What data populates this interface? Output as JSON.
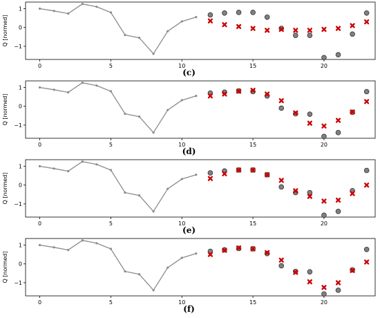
{
  "chart_data": [
    {
      "type": "scatter",
      "panel_label": "(c)",
      "ylabel": "Q [normed]",
      "xlim": [
        -1,
        23.6
      ],
      "ylim": [
        -1.7,
        1.35
      ],
      "x_ticks": [
        0,
        5,
        10,
        15,
        20
      ],
      "y_ticks": [
        1,
        0,
        -1
      ],
      "history": {
        "x": [
          0,
          1,
          2,
          3,
          4,
          5,
          6,
          7,
          8,
          9,
          10,
          11
        ],
        "y": [
          1.0,
          0.88,
          0.74,
          1.25,
          1.1,
          0.8,
          -0.4,
          -0.55,
          -1.4,
          -0.2,
          0.32,
          0.55
        ]
      },
      "observed": {
        "x": [
          12,
          13,
          14,
          15,
          16,
          17,
          18,
          19,
          20,
          21,
          22,
          23
        ],
        "y": [
          0.67,
          0.77,
          0.8,
          0.8,
          0.55,
          -0.05,
          -0.42,
          -0.42,
          -1.6,
          -1.45,
          -0.35,
          0.77
        ]
      },
      "predicted": {
        "x": [
          12,
          13,
          14,
          15,
          16,
          17,
          18,
          19,
          20,
          21,
          22,
          23
        ],
        "y": [
          0.35,
          0.15,
          0.05,
          -0.05,
          -0.15,
          -0.1,
          -0.15,
          -0.15,
          -0.1,
          -0.05,
          0.1,
          0.3
        ]
      }
    },
    {
      "type": "scatter",
      "panel_label": "(d)",
      "ylabel": "Q [normed]",
      "xlim": [
        -1,
        23.6
      ],
      "ylim": [
        -1.7,
        1.35
      ],
      "x_ticks": [
        0,
        5,
        10,
        15,
        20
      ],
      "y_ticks": [
        1,
        0,
        -1
      ],
      "history": {
        "x": [
          0,
          1,
          2,
          3,
          4,
          5,
          6,
          7,
          8,
          9,
          10,
          11
        ],
        "y": [
          1.0,
          0.88,
          0.74,
          1.25,
          1.1,
          0.8,
          -0.4,
          -0.55,
          -1.4,
          -0.2,
          0.32,
          0.55
        ]
      },
      "observed": {
        "x": [
          12,
          13,
          14,
          15,
          16,
          17,
          18,
          19,
          20,
          21,
          22,
          23
        ],
        "y": [
          0.7,
          0.75,
          0.82,
          0.78,
          0.55,
          -0.1,
          -0.4,
          -0.42,
          -1.6,
          -1.4,
          -0.32,
          0.78
        ]
      },
      "predicted": {
        "x": [
          12,
          13,
          14,
          15,
          16,
          17,
          18,
          19,
          20,
          21,
          22,
          23
        ],
        "y": [
          0.55,
          0.65,
          0.8,
          0.85,
          0.65,
          0.3,
          -0.35,
          -0.9,
          -1.05,
          -0.75,
          -0.3,
          0.25
        ]
      }
    },
    {
      "type": "scatter",
      "panel_label": "(e)",
      "ylabel": "Q [normed]",
      "xlim": [
        -1,
        23.6
      ],
      "ylim": [
        -1.7,
        1.35
      ],
      "x_ticks": [
        0,
        5,
        10,
        15,
        20
      ],
      "y_ticks": [
        1,
        0,
        -1
      ],
      "history": {
        "x": [
          0,
          1,
          2,
          3,
          4,
          5,
          6,
          7,
          8,
          9,
          10,
          11
        ],
        "y": [
          1.0,
          0.88,
          0.74,
          1.25,
          1.1,
          0.8,
          -0.4,
          -0.55,
          -1.4,
          -0.2,
          0.32,
          0.55
        ]
      },
      "observed": {
        "x": [
          12,
          13,
          14,
          15,
          16,
          17,
          18,
          19,
          20,
          21,
          22,
          23
        ],
        "y": [
          0.65,
          0.75,
          0.8,
          0.8,
          0.55,
          -0.1,
          -0.4,
          -0.4,
          -1.6,
          -1.4,
          -0.3,
          0.78
        ]
      },
      "predicted": {
        "x": [
          12,
          13,
          14,
          15,
          16,
          17,
          18,
          19,
          20,
          21,
          22,
          23
        ],
        "y": [
          0.35,
          0.6,
          0.8,
          0.8,
          0.55,
          0.25,
          -0.3,
          -0.6,
          -0.85,
          -0.8,
          -0.45,
          0.0
        ]
      }
    },
    {
      "type": "scatter",
      "panel_label": "(f)",
      "ylabel": "Q [normed]",
      "xlim": [
        -1,
        23.6
      ],
      "ylim": [
        -1.7,
        1.35
      ],
      "x_ticks": [
        0,
        5,
        10,
        15,
        20
      ],
      "y_ticks": [
        1,
        0,
        -1
      ],
      "history": {
        "x": [
          0,
          1,
          2,
          3,
          4,
          5,
          6,
          7,
          8,
          9,
          10,
          11
        ],
        "y": [
          1.0,
          0.88,
          0.74,
          1.25,
          1.1,
          0.8,
          -0.4,
          -0.55,
          -1.4,
          -0.2,
          0.32,
          0.55
        ]
      },
      "observed": {
        "x": [
          12,
          13,
          14,
          15,
          16,
          17,
          18,
          19,
          20,
          21,
          22,
          23
        ],
        "y": [
          0.67,
          0.75,
          0.82,
          0.8,
          0.55,
          -0.1,
          -0.4,
          -0.42,
          -1.6,
          -1.4,
          -0.32,
          0.77
        ]
      },
      "predicted": {
        "x": [
          12,
          13,
          14,
          15,
          16,
          17,
          18,
          19,
          20,
          21,
          22,
          23
        ],
        "y": [
          0.5,
          0.72,
          0.85,
          0.8,
          0.6,
          0.2,
          -0.45,
          -0.95,
          -1.25,
          -1.0,
          -0.35,
          0.1
        ]
      }
    }
  ],
  "colors": {
    "history_line": "#8a8a8a",
    "observed_fill": "#808080",
    "observed_edge": "#333333",
    "predicted": "#cc0000",
    "axes": "#000000"
  }
}
